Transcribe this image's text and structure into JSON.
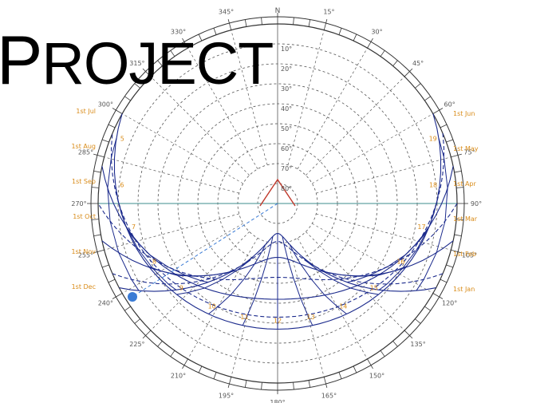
{
  "title": {
    "first": "P",
    "rest": "ROJECT"
  },
  "diagram": {
    "north_label": "N",
    "azimuth_labels": [
      {
        "az": 15,
        "text": "15°"
      },
      {
        "az": 30,
        "text": "30°"
      },
      {
        "az": 45,
        "text": "45°"
      },
      {
        "az": 60,
        "text": "60°"
      },
      {
        "az": 75,
        "text": "75°"
      },
      {
        "az": 90,
        "text": "90°"
      },
      {
        "az": 105,
        "text": "105°"
      },
      {
        "az": 120,
        "text": "120°"
      },
      {
        "az": 135,
        "text": "135°"
      },
      {
        "az": 150,
        "text": "150°"
      },
      {
        "az": 165,
        "text": "165°"
      },
      {
        "az": 180,
        "text": "180°"
      },
      {
        "az": 195,
        "text": "195°"
      },
      {
        "az": 210,
        "text": "210°"
      },
      {
        "az": 225,
        "text": "225°"
      },
      {
        "az": 240,
        "text": "240°"
      },
      {
        "az": 255,
        "text": "255°"
      },
      {
        "az": 270,
        "text": "270°"
      },
      {
        "az": 285,
        "text": "285°"
      },
      {
        "az": 300,
        "text": "300°"
      },
      {
        "az": 315,
        "text": "315°"
      },
      {
        "az": 330,
        "text": "330°"
      },
      {
        "az": 345,
        "text": "345°"
      }
    ],
    "altitude_labels": [
      "10°",
      "20°",
      "30°",
      "40°",
      "50°",
      "60°",
      "70°",
      "80°"
    ],
    "date_labels_right": [
      "1st Jun",
      "1st May",
      "1st Apr",
      "1st Mar",
      "1st Feb",
      "1st Jan"
    ],
    "date_labels_left": [
      "1st Jul",
      "1st Aug",
      "1st Sep",
      "1st Oct",
      "1st Nov",
      "1st Dec"
    ],
    "hour_labels": [
      "5",
      "6",
      "7",
      "8",
      "9",
      "10",
      "11",
      "12",
      "13",
      "14",
      "15",
      "16",
      "17",
      "18",
      "19"
    ],
    "colors": {
      "circle": "#333333",
      "grid": "#555555",
      "sunpath": "#1b2a8c",
      "label": "#d98c1a",
      "needle": "#c0392b",
      "ray": "#3a7bd5",
      "axis": "#3c8c8c"
    }
  }
}
